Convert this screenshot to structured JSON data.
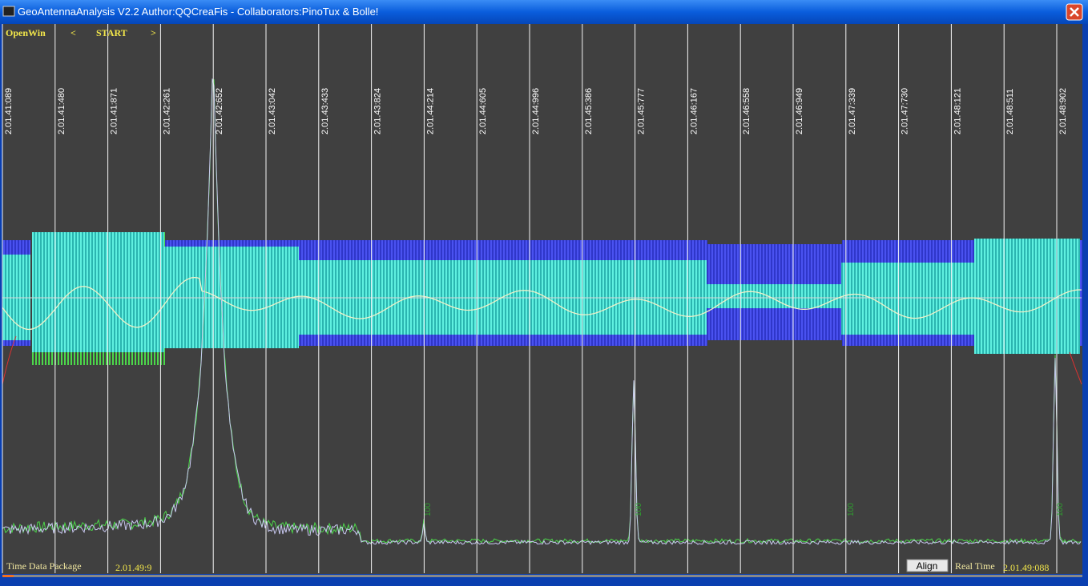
{
  "window": {
    "title": "GeoAntennaAnalysis V2.2 Author:QQCreaFis - Collaborators:PinoTux & Bolle!"
  },
  "toolbar": {
    "open": "OpenWin",
    "prev": "<",
    "start": "START",
    "next": ">"
  },
  "timestamps": [
    "2.01.41:089",
    "2.01.41:480",
    "2.01.41:871",
    "2.01.42:261",
    "2.01.42:652",
    "2.01.43:042",
    "2.01.43:433",
    "2.01.43:824",
    "2.01.44:214",
    "2.01.44:605",
    "2.01.44:996",
    "2.01.45:386",
    "2.01.45:777",
    "2.01.46:167",
    "2.01.46:558",
    "2.01.46:949",
    "2.01.47:339",
    "2.01.47:730",
    "2.01.48:121",
    "2.01.48:511",
    "2.01.48:902"
  ],
  "peak_markers": [
    "100",
    "100",
    "100",
    "100"
  ],
  "footer": {
    "package_label": "Time Data Package",
    "package_time": "2.01.49:9",
    "align": "Align",
    "realtime_label": "Real Time",
    "realtime_value": "2.01.49:088"
  }
}
